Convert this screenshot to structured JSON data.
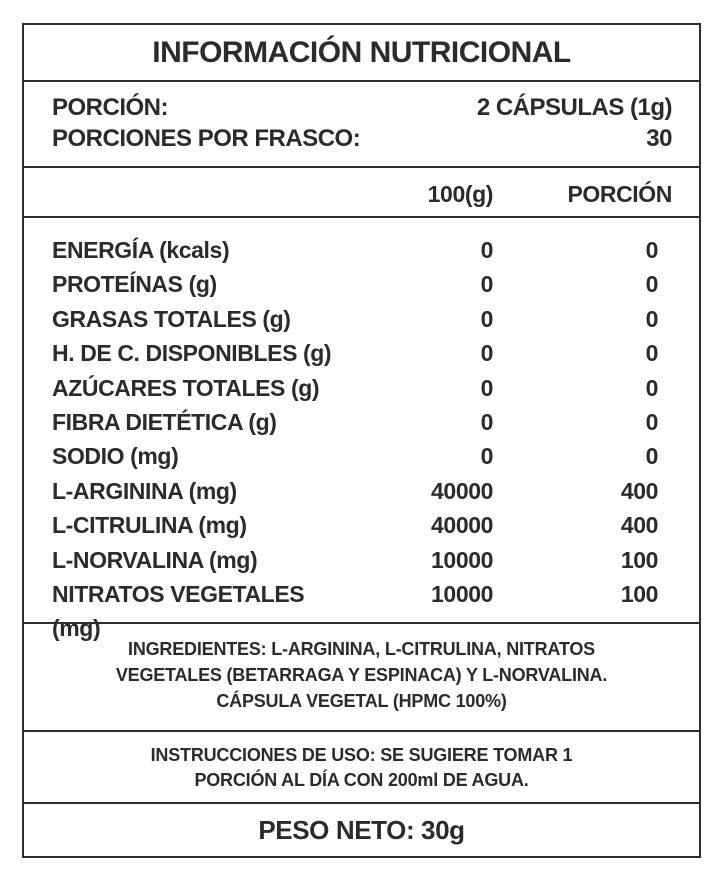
{
  "title": "INFORMACIÓN NUTRICIONAL",
  "serving": {
    "portion_label": "PORCIÓN:",
    "portion_value": "2 CÁPSULAS (1g)",
    "servings_label": "PORCIONES POR FRASCO:",
    "servings_value": "30"
  },
  "table": {
    "col_per100_header": "100(g)",
    "col_portion_header": "PORCIÓN",
    "rows": [
      {
        "label": "ENERGÍA (kcals)",
        "per100": "0",
        "portion": "0"
      },
      {
        "label": "PROTEÍNAS (g)",
        "per100": "0",
        "portion": "0"
      },
      {
        "label": "GRASAS TOTALES (g)",
        "per100": "0",
        "portion": "0"
      },
      {
        "label": "H. DE C. DISPONIBLES (g)",
        "per100": "0",
        "portion": "0"
      },
      {
        "label": "AZÚCARES TOTALES (g)",
        "per100": "0",
        "portion": "0"
      },
      {
        "label": "FIBRA DIETÉTICA (g)",
        "per100": "0",
        "portion": "0"
      },
      {
        "label": "SODIO (mg)",
        "per100": "0",
        "portion": "0"
      },
      {
        "label": "L-ARGININA (mg)",
        "per100": "40000",
        "portion": "400"
      },
      {
        "label": "L-CITRULINA (mg)",
        "per100": "40000",
        "portion": "400"
      },
      {
        "label": "L-NORVALINA (mg)",
        "per100": "10000",
        "portion": "100"
      },
      {
        "label": "NITRATOS VEGETALES (mg)",
        "per100": "10000",
        "portion": "100"
      }
    ]
  },
  "ingredients": {
    "line1": "INGREDIENTES: L-ARGININA, L-CITRULINA, NITRATOS",
    "line2": "VEGETALES (BETARRAGA Y ESPINACA) Y L-NORVALINA.",
    "line3": "CÁPSULA VEGETAL (HPMC 100%)"
  },
  "instructions": {
    "line1": "INSTRUCCIONES DE USO: SE SUGIERE TOMAR 1",
    "line2": "PORCIÓN AL DÍA CON 200ml DE AGUA."
  },
  "net_weight": "PESO NETO: 30g",
  "colors": {
    "text": "#2b2b2b",
    "border": "#2e2e2e",
    "background": "#ffffff"
  }
}
